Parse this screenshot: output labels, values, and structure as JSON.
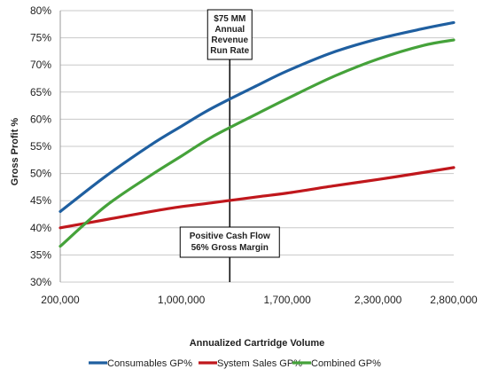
{
  "chart_data": {
    "type": "line",
    "title": "",
    "xlabel": "Annualized Cartridge Volume",
    "ylabel": "Gross Profit %",
    "xlim": [
      200000,
      2800000
    ],
    "ylim": [
      30,
      80
    ],
    "x_ticks": [
      "200,000",
      "1,000,000",
      "1,700,000",
      "2,300,000",
      "2,800,000"
    ],
    "x_tick_values": [
      200000,
      1000000,
      1700000,
      2300000,
      2800000
    ],
    "y_ticks": [
      "30%",
      "35%",
      "40%",
      "45%",
      "50%",
      "55%",
      "60%",
      "65%",
      "70%",
      "75%",
      "80%"
    ],
    "y_tick_values": [
      30,
      35,
      40,
      45,
      50,
      55,
      60,
      65,
      70,
      75,
      80
    ],
    "grid": "horizontal",
    "legend_position": "bottom",
    "series": [
      {
        "name": "Consumables GP%",
        "color": "#1f5fa0",
        "x": [
          200000,
          500000,
          800000,
          1000000,
          1200000,
          1500000,
          1700000,
          2000000,
          2300000,
          2600000,
          2800000
        ],
        "y": [
          43,
          49.5,
          55.3,
          58.7,
          62,
          66.2,
          68.9,
          72.3,
          74.8,
          76.7,
          77.8
        ]
      },
      {
        "name": "System Sales GP%",
        "color": "#c0171c",
        "x": [
          200000,
          500000,
          800000,
          1000000,
          1200000,
          1500000,
          1700000,
          2000000,
          2300000,
          2600000,
          2800000
        ],
        "y": [
          40,
          41.5,
          43,
          43.9,
          44.6,
          45.7,
          46.4,
          47.7,
          48.9,
          50.2,
          51.1
        ]
      },
      {
        "name": "Combined GP%",
        "color": "#45a23a",
        "x": [
          200000,
          500000,
          800000,
          1000000,
          1200000,
          1500000,
          1700000,
          2000000,
          2300000,
          2600000,
          2800000
        ],
        "y": [
          36.6,
          44,
          49.7,
          53.2,
          56.7,
          61,
          63.8,
          67.8,
          71.1,
          73.6,
          74.6
        ]
      }
    ],
    "marker_line": {
      "x": 1320000
    },
    "annotations": [
      {
        "lines": [
          "$75 MM",
          "Annual",
          "Revenue",
          "Run Rate"
        ]
      },
      {
        "lines": [
          "Positive Cash Flow",
          "56% Gross Margin"
        ]
      }
    ]
  }
}
